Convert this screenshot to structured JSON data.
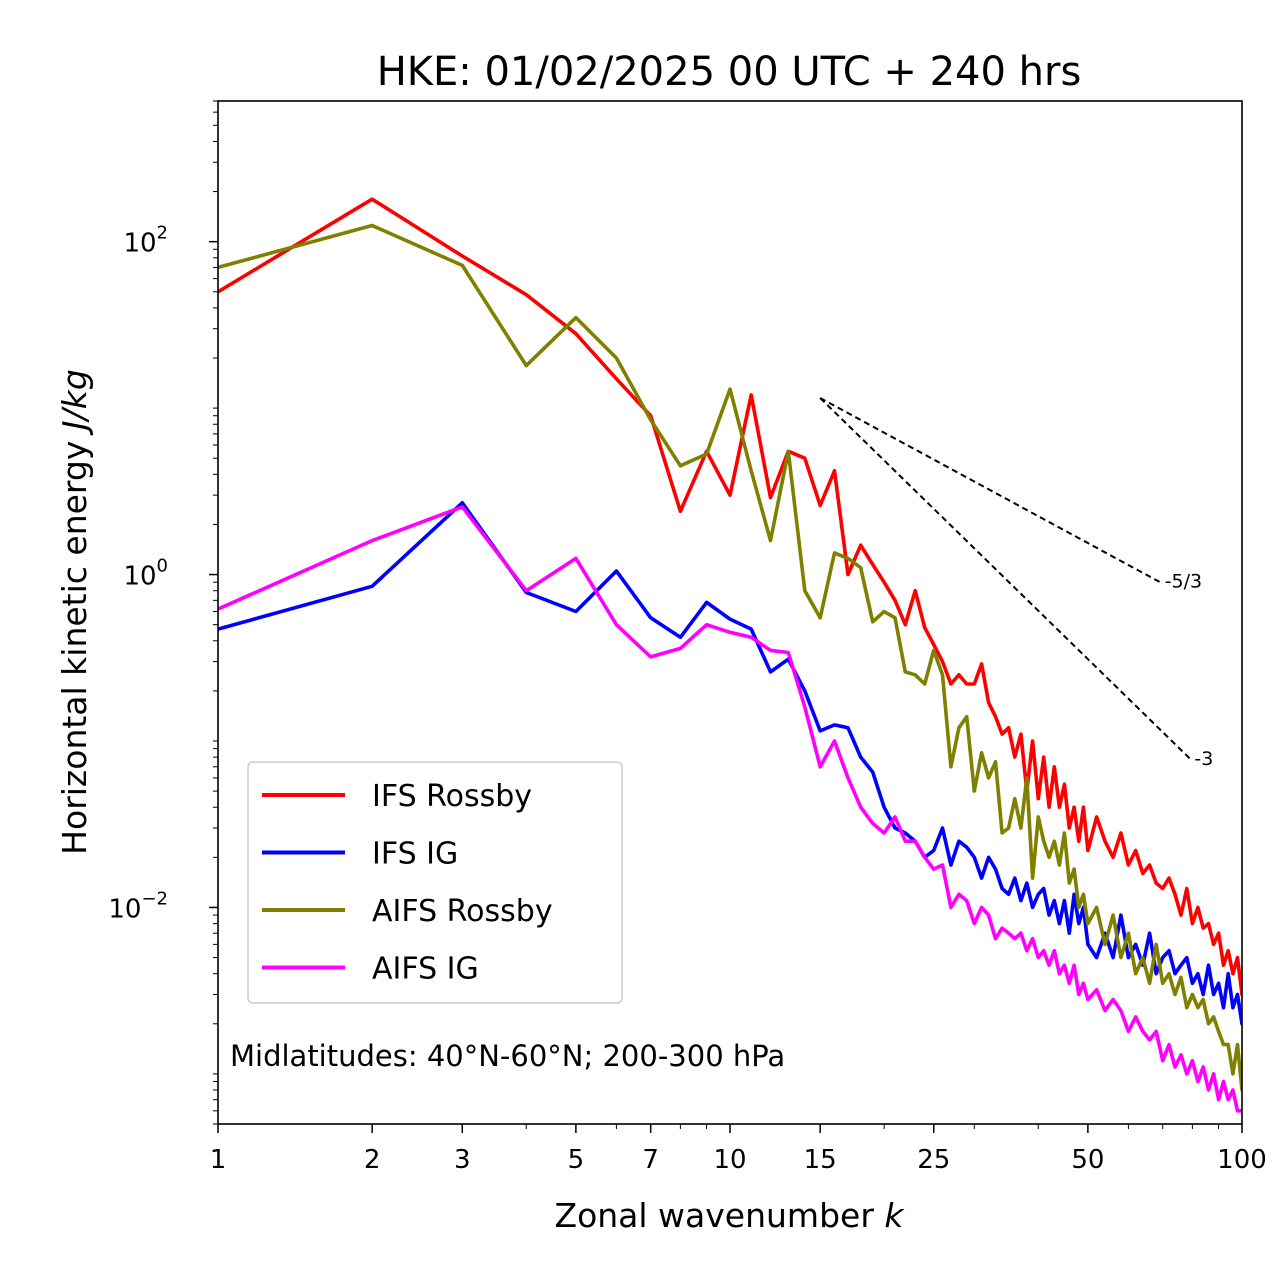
{
  "chart_data": {
    "type": "line",
    "title": "HKE: 01/02/2025 00 UTC + 240 hrs",
    "xlabel": "Zonal wavenumber",
    "xlabel_var": "k",
    "ylabel": "Horizontal kinetic energy",
    "ylabel_unit": "J/kg",
    "xscale": "log",
    "yscale": "log",
    "xlim": [
      1,
      100
    ],
    "ylim": [
      0.0005,
      700
    ],
    "x_ticks": [
      {
        "value": 1,
        "label": "1"
      },
      {
        "value": 2,
        "label": "2"
      },
      {
        "value": 3,
        "label": "3"
      },
      {
        "value": 5,
        "label": "5"
      },
      {
        "value": 7,
        "label": "7"
      },
      {
        "value": 10,
        "label": "10"
      },
      {
        "value": 15,
        "label": "15"
      },
      {
        "value": 25,
        "label": "25"
      },
      {
        "value": 50,
        "label": "50"
      },
      {
        "value": 100,
        "label": "100"
      }
    ],
    "y_ticks": [
      {
        "value": 0.01,
        "base": "10",
        "exp": "−2"
      },
      {
        "value": 1,
        "base": "10",
        "exp": "0"
      },
      {
        "value": 100,
        "base": "10",
        "exp": "2"
      }
    ],
    "legend": {
      "position": "lower-left"
    },
    "annotation": "Midlatitudes: 40°N-60°N; 200-300 hPa",
    "reference_slopes": [
      {
        "label": "-5/3",
        "slope": -1.6667,
        "x": [
          15,
          70
        ],
        "y_start": 11.5
      },
      {
        "label": "-3",
        "slope": -3,
        "x": [
          15,
          80
        ],
        "y_start": 11.5
      }
    ],
    "series": [
      {
        "name": "IFS Rossby",
        "color": "#ff0000",
        "x": [
          1,
          2,
          3,
          4,
          5,
          6,
          7,
          8,
          9,
          10,
          11,
          12,
          13,
          14,
          15,
          16,
          17,
          18,
          19,
          20,
          21,
          22,
          23,
          24,
          25,
          26,
          27,
          28,
          29,
          30,
          31,
          32,
          33,
          34,
          35,
          36,
          37,
          38,
          39,
          40,
          41,
          42,
          43,
          44,
          45,
          46,
          47,
          48,
          49,
          50,
          52,
          54,
          56,
          58,
          60,
          62,
          64,
          66,
          68,
          70,
          72,
          74,
          76,
          78,
          80,
          82,
          84,
          86,
          88,
          90,
          92,
          94,
          96,
          98,
          100
        ],
        "values": [
          50,
          180,
          82,
          48,
          28,
          15,
          9,
          2.4,
          5.5,
          3,
          12,
          2.9,
          5.5,
          5,
          2.6,
          4.2,
          1,
          1.5,
          1.15,
          0.9,
          0.7,
          0.5,
          0.8,
          0.48,
          0.38,
          0.3,
          0.22,
          0.25,
          0.22,
          0.22,
          0.29,
          0.17,
          0.14,
          0.11,
          0.12,
          0.08,
          0.11,
          0.05,
          0.1,
          0.045,
          0.08,
          0.04,
          0.07,
          0.04,
          0.055,
          0.03,
          0.04,
          0.025,
          0.04,
          0.022,
          0.035,
          0.025,
          0.02,
          0.028,
          0.018,
          0.022,
          0.016,
          0.018,
          0.014,
          0.013,
          0.015,
          0.012,
          0.009,
          0.013,
          0.008,
          0.01,
          0.0075,
          0.008,
          0.006,
          0.007,
          0.0045,
          0.0055,
          0.004,
          0.005,
          0.003
        ]
      },
      {
        "name": "IFS IG",
        "color": "#0000ff",
        "x": [
          1,
          2,
          3,
          4,
          5,
          6,
          7,
          8,
          9,
          10,
          11,
          12,
          13,
          14,
          15,
          16,
          17,
          18,
          19,
          20,
          21,
          22,
          23,
          24,
          25,
          26,
          27,
          28,
          29,
          30,
          31,
          32,
          33,
          34,
          35,
          36,
          37,
          38,
          39,
          40,
          41,
          42,
          43,
          44,
          45,
          46,
          47,
          48,
          49,
          50,
          52,
          54,
          56,
          58,
          60,
          62,
          64,
          66,
          68,
          70,
          72,
          74,
          76,
          78,
          80,
          82,
          84,
          86,
          88,
          90,
          92,
          94,
          96,
          98,
          100
        ],
        "values": [
          0.47,
          0.85,
          2.7,
          0.78,
          0.6,
          1.05,
          0.55,
          0.42,
          0.68,
          0.54,
          0.47,
          0.26,
          0.31,
          0.2,
          0.115,
          0.125,
          0.12,
          0.08,
          0.065,
          0.04,
          0.03,
          0.028,
          0.025,
          0.02,
          0.022,
          0.03,
          0.018,
          0.025,
          0.023,
          0.02,
          0.015,
          0.02,
          0.017,
          0.013,
          0.012,
          0.015,
          0.011,
          0.014,
          0.01,
          0.012,
          0.013,
          0.009,
          0.011,
          0.008,
          0.011,
          0.007,
          0.012,
          0.008,
          0.01,
          0.006,
          0.005,
          0.007,
          0.005,
          0.009,
          0.005,
          0.006,
          0.0045,
          0.007,
          0.004,
          0.005,
          0.0055,
          0.004,
          0.0045,
          0.005,
          0.0035,
          0.004,
          0.003,
          0.0045,
          0.003,
          0.0035,
          0.0025,
          0.004,
          0.0025,
          0.003,
          0.002
        ]
      },
      {
        "name": "AIFS Rossby",
        "color": "#808000",
        "x": [
          1,
          2,
          3,
          4,
          5,
          6,
          7,
          8,
          9,
          10,
          11,
          12,
          13,
          14,
          15,
          16,
          17,
          18,
          19,
          20,
          21,
          22,
          23,
          24,
          25,
          26,
          27,
          28,
          29,
          30,
          31,
          32,
          33,
          34,
          35,
          36,
          37,
          38,
          39,
          40,
          41,
          42,
          43,
          44,
          45,
          46,
          47,
          48,
          49,
          50,
          52,
          54,
          56,
          58,
          60,
          62,
          64,
          66,
          68,
          70,
          72,
          74,
          76,
          78,
          80,
          82,
          84,
          86,
          88,
          90,
          92,
          94,
          96,
          98,
          100
        ],
        "values": [
          70,
          125,
          72,
          18,
          35,
          20,
          8.5,
          4.5,
          5.3,
          13,
          4.2,
          1.6,
          5.5,
          0.8,
          0.55,
          1.35,
          1.25,
          1.1,
          0.52,
          0.6,
          0.55,
          0.26,
          0.25,
          0.22,
          0.35,
          0.25,
          0.07,
          0.12,
          0.14,
          0.05,
          0.085,
          0.06,
          0.075,
          0.028,
          0.03,
          0.045,
          0.03,
          0.06,
          0.015,
          0.035,
          0.025,
          0.02,
          0.025,
          0.018,
          0.028,
          0.014,
          0.017,
          0.01,
          0.012,
          0.008,
          0.01,
          0.006,
          0.009,
          0.005,
          0.007,
          0.004,
          0.005,
          0.0035,
          0.006,
          0.0035,
          0.004,
          0.003,
          0.0038,
          0.0025,
          0.003,
          0.0025,
          0.0028,
          0.002,
          0.0022,
          0.0018,
          0.0015,
          0.0015,
          0.001,
          0.0015,
          0.0008
        ]
      },
      {
        "name": "AIFS IG",
        "color": "#ff00ff",
        "x": [
          1,
          2,
          3,
          4,
          5,
          6,
          7,
          8,
          9,
          10,
          11,
          12,
          13,
          14,
          15,
          16,
          17,
          18,
          19,
          20,
          21,
          22,
          23,
          24,
          25,
          26,
          27,
          28,
          29,
          30,
          31,
          32,
          33,
          34,
          35,
          36,
          37,
          38,
          39,
          40,
          41,
          42,
          43,
          44,
          45,
          46,
          47,
          48,
          49,
          50,
          52,
          54,
          56,
          58,
          60,
          62,
          64,
          66,
          68,
          70,
          72,
          74,
          76,
          78,
          80,
          82,
          84,
          86,
          88,
          90,
          92,
          94,
          96,
          98,
          100
        ],
        "values": [
          0.62,
          1.6,
          2.55,
          0.8,
          1.25,
          0.5,
          0.32,
          0.36,
          0.5,
          0.45,
          0.42,
          0.35,
          0.34,
          0.16,
          0.07,
          0.1,
          0.06,
          0.04,
          0.032,
          0.028,
          0.035,
          0.025,
          0.025,
          0.02,
          0.017,
          0.018,
          0.01,
          0.012,
          0.011,
          0.008,
          0.01,
          0.009,
          0.0065,
          0.0075,
          0.007,
          0.0065,
          0.007,
          0.0055,
          0.0065,
          0.005,
          0.0055,
          0.0045,
          0.0055,
          0.004,
          0.0045,
          0.0035,
          0.0045,
          0.003,
          0.0035,
          0.0028,
          0.0032,
          0.0024,
          0.0028,
          0.0024,
          0.0018,
          0.0022,
          0.0018,
          0.0016,
          0.0018,
          0.0012,
          0.0015,
          0.0011,
          0.0013,
          0.001,
          0.0012,
          0.0009,
          0.0011,
          0.0008,
          0.001,
          0.0007,
          0.0009,
          0.0007,
          0.0008,
          0.0006,
          0.0006
        ]
      }
    ]
  }
}
